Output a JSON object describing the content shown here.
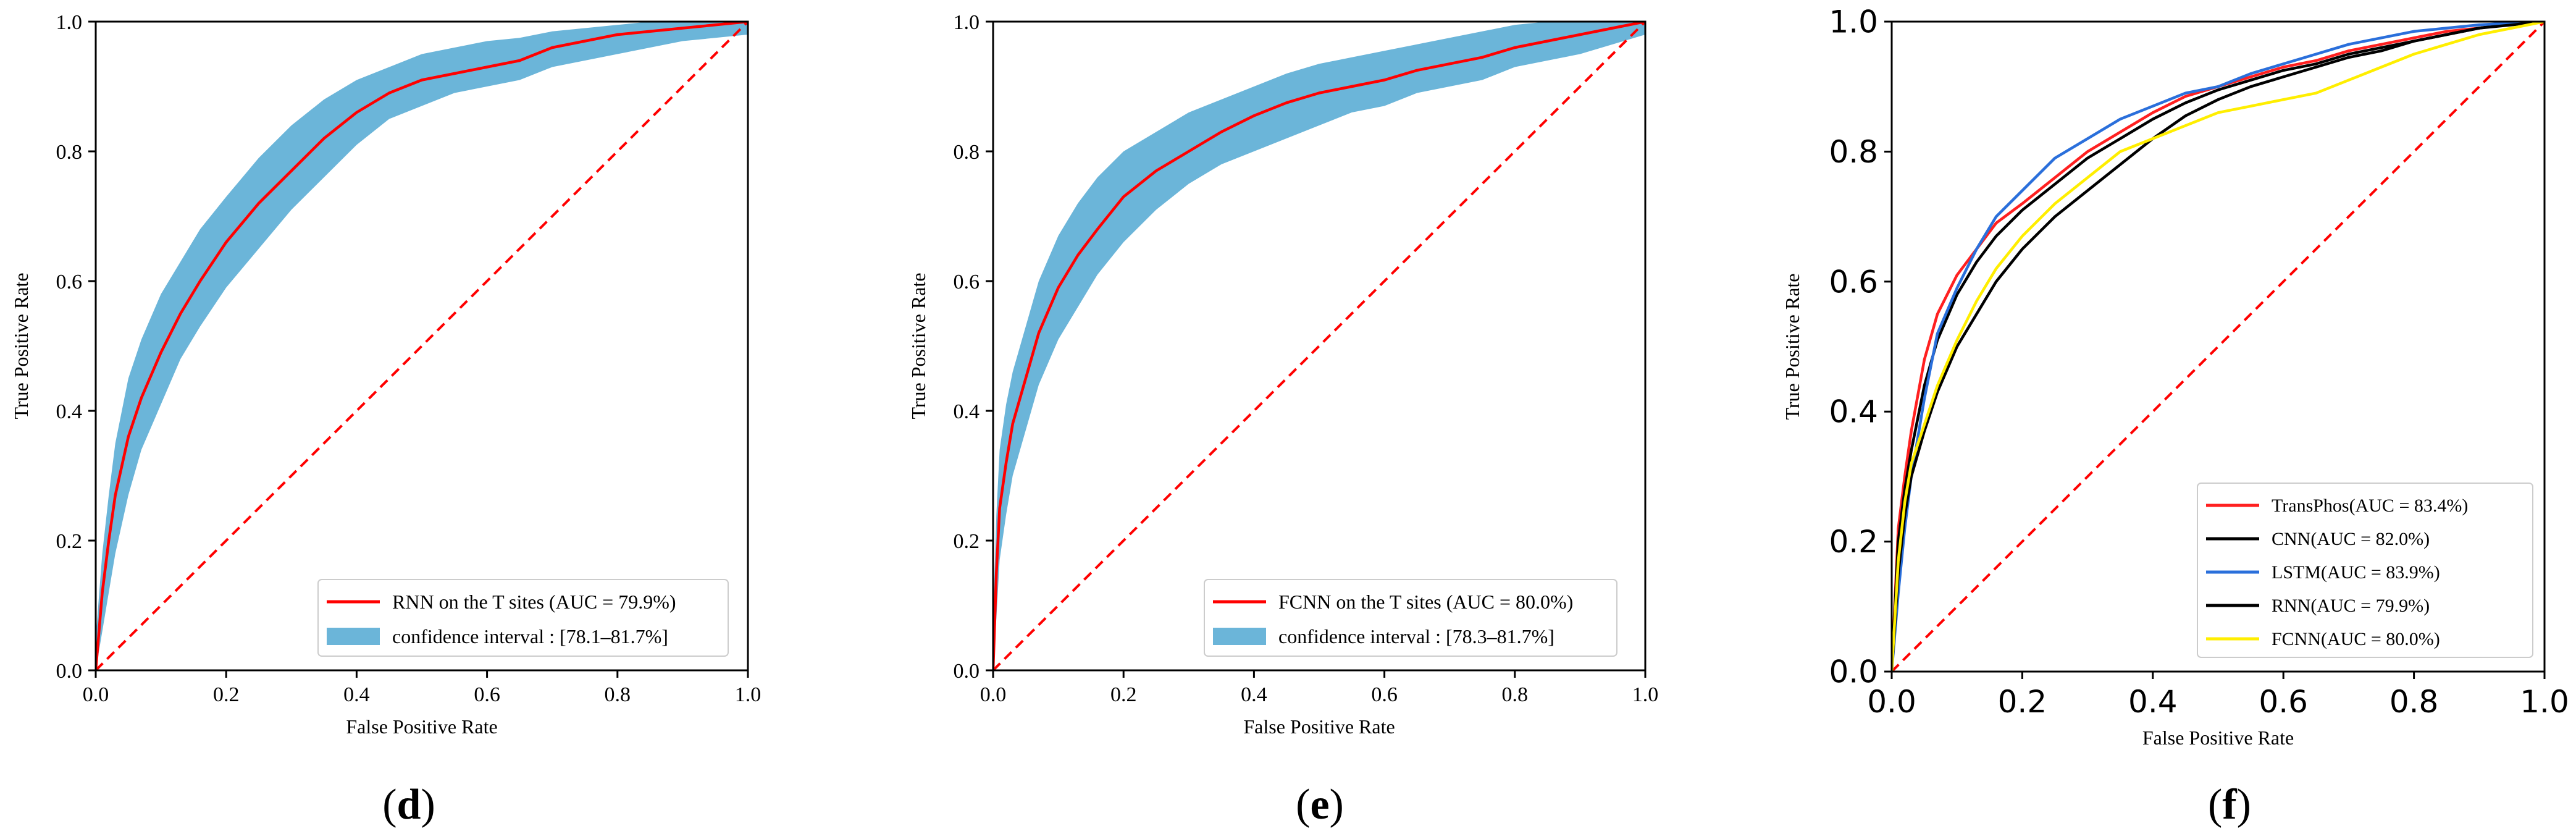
{
  "chart_data": [
    {
      "type": "line",
      "panel_label": "d",
      "xlabel": "False Positive Rate",
      "ylabel": "True Positive Rate",
      "xlim": [
        0.0,
        1.0
      ],
      "ylim": [
        0.0,
        1.0
      ],
      "xticks": [
        "0.0",
        "0.2",
        "0.4",
        "0.6",
        "0.8",
        "1.0"
      ],
      "yticks": [
        "0.0",
        "0.2",
        "0.4",
        "0.6",
        "0.8",
        "1.0"
      ],
      "legend_position": "lower-right",
      "series": [
        {
          "name": "RNN on the T sites (AUC = 79.9%)",
          "color": "#ff0000",
          "style": "solid",
          "x": [
            0,
            0.01,
            0.02,
            0.03,
            0.05,
            0.07,
            0.1,
            0.13,
            0.16,
            0.2,
            0.25,
            0.3,
            0.35,
            0.4,
            0.45,
            0.5,
            0.55,
            0.6,
            0.65,
            0.7,
            0.75,
            0.8,
            0.85,
            0.9,
            0.95,
            1.0
          ],
          "y": [
            0,
            0.12,
            0.2,
            0.27,
            0.36,
            0.42,
            0.49,
            0.55,
            0.6,
            0.66,
            0.72,
            0.77,
            0.82,
            0.86,
            0.89,
            0.91,
            0.92,
            0.93,
            0.94,
            0.96,
            0.97,
            0.98,
            0.985,
            0.99,
            0.995,
            1.0
          ]
        },
        {
          "name": "confidence interval : [78.1–81.7%]",
          "color": "#6bb5d9",
          "style": "band",
          "x": [
            0,
            0.01,
            0.02,
            0.03,
            0.05,
            0.07,
            0.1,
            0.13,
            0.16,
            0.2,
            0.25,
            0.3,
            0.35,
            0.4,
            0.45,
            0.5,
            0.55,
            0.6,
            0.65,
            0.7,
            0.75,
            0.8,
            0.85,
            0.9,
            0.95,
            1.0
          ],
          "lower": [
            0,
            0.06,
            0.12,
            0.18,
            0.27,
            0.34,
            0.41,
            0.48,
            0.53,
            0.59,
            0.65,
            0.71,
            0.76,
            0.81,
            0.85,
            0.87,
            0.89,
            0.9,
            0.91,
            0.93,
            0.94,
            0.95,
            0.96,
            0.97,
            0.975,
            0.98
          ],
          "upper": [
            0.05,
            0.18,
            0.27,
            0.35,
            0.45,
            0.51,
            0.58,
            0.63,
            0.68,
            0.73,
            0.79,
            0.84,
            0.88,
            0.91,
            0.93,
            0.95,
            0.96,
            0.97,
            0.975,
            0.985,
            0.99,
            0.995,
            1.0,
            1.0,
            1.0,
            1.0
          ]
        },
        {
          "name": "diagonal",
          "color": "#ff0000",
          "style": "dashed",
          "x": [
            0,
            1
          ],
          "y": [
            0,
            1
          ]
        }
      ]
    },
    {
      "type": "line",
      "panel_label": "e",
      "xlabel": "False Positive Rate",
      "ylabel": "True Positive Rate",
      "xlim": [
        0.0,
        1.0
      ],
      "ylim": [
        0.0,
        1.0
      ],
      "xticks": [
        "0.0",
        "0.2",
        "0.4",
        "0.6",
        "0.8",
        "1.0"
      ],
      "yticks": [
        "0.0",
        "0.2",
        "0.4",
        "0.6",
        "0.8",
        "1.0"
      ],
      "legend_position": "lower-right",
      "series": [
        {
          "name": "FCNN on the T sites (AUC = 80.0%)",
          "color": "#ff0000",
          "style": "solid",
          "x": [
            0,
            0.005,
            0.01,
            0.02,
            0.03,
            0.05,
            0.07,
            0.1,
            0.13,
            0.16,
            0.2,
            0.25,
            0.3,
            0.35,
            0.4,
            0.45,
            0.5,
            0.55,
            0.6,
            0.65,
            0.7,
            0.75,
            0.8,
            0.85,
            0.9,
            0.95,
            1.0
          ],
          "y": [
            0,
            0.15,
            0.25,
            0.32,
            0.38,
            0.45,
            0.52,
            0.59,
            0.64,
            0.68,
            0.73,
            0.77,
            0.8,
            0.83,
            0.855,
            0.875,
            0.89,
            0.9,
            0.91,
            0.925,
            0.935,
            0.945,
            0.96,
            0.97,
            0.98,
            0.99,
            1.0
          ]
        },
        {
          "name": "confidence interval : [78.3–81.7%]",
          "color": "#6bb5d9",
          "style": "band",
          "x": [
            0,
            0.005,
            0.01,
            0.02,
            0.03,
            0.05,
            0.07,
            0.1,
            0.13,
            0.16,
            0.2,
            0.25,
            0.3,
            0.35,
            0.4,
            0.45,
            0.5,
            0.55,
            0.6,
            0.65,
            0.7,
            0.75,
            0.8,
            0.85,
            0.9,
            0.95,
            1.0
          ],
          "lower": [
            0,
            0.08,
            0.17,
            0.24,
            0.3,
            0.37,
            0.44,
            0.51,
            0.56,
            0.61,
            0.66,
            0.71,
            0.75,
            0.78,
            0.8,
            0.82,
            0.84,
            0.86,
            0.87,
            0.89,
            0.9,
            0.91,
            0.93,
            0.94,
            0.95,
            0.965,
            0.98
          ],
          "upper": [
            0.08,
            0.24,
            0.34,
            0.41,
            0.46,
            0.53,
            0.6,
            0.67,
            0.72,
            0.76,
            0.8,
            0.83,
            0.86,
            0.88,
            0.9,
            0.92,
            0.935,
            0.945,
            0.955,
            0.965,
            0.975,
            0.985,
            0.995,
            1.0,
            1.0,
            1.0,
            1.0
          ]
        },
        {
          "name": "diagonal",
          "color": "#ff0000",
          "style": "dashed",
          "x": [
            0,
            1
          ],
          "y": [
            0,
            1
          ]
        }
      ]
    },
    {
      "type": "line",
      "panel_label": "f",
      "xlabel": "False Positive Rate",
      "ylabel": "True Positive Rate",
      "xlim": [
        0.0,
        1.0
      ],
      "ylim": [
        0.0,
        1.0
      ],
      "xticks": [
        "0.0",
        "0.2",
        "0.4",
        "0.6",
        "0.8",
        "1.0"
      ],
      "yticks": [
        "0.0",
        "0.2",
        "0.4",
        "0.6",
        "0.8",
        "1.0"
      ],
      "legend_position": "lower-right",
      "series": [
        {
          "name": "TransPhos(AUC = 83.4%)",
          "color": "#ff2020",
          "style": "solid",
          "x": [
            0,
            0.01,
            0.02,
            0.03,
            0.05,
            0.07,
            0.1,
            0.13,
            0.16,
            0.2,
            0.25,
            0.3,
            0.35,
            0.4,
            0.45,
            0.5,
            0.55,
            0.6,
            0.65,
            0.7,
            0.75,
            0.8,
            0.85,
            0.9,
            0.95,
            1.0
          ],
          "y": [
            0,
            0.22,
            0.3,
            0.37,
            0.48,
            0.55,
            0.61,
            0.65,
            0.69,
            0.72,
            0.76,
            0.8,
            0.83,
            0.86,
            0.885,
            0.9,
            0.915,
            0.93,
            0.94,
            0.955,
            0.965,
            0.975,
            0.985,
            0.99,
            0.997,
            1.0
          ]
        },
        {
          "name": "CNN(AUC = 82.0%)",
          "color": "#000000",
          "style": "solid",
          "x": [
            0,
            0.01,
            0.02,
            0.03,
            0.05,
            0.07,
            0.1,
            0.13,
            0.16,
            0.2,
            0.25,
            0.3,
            0.35,
            0.4,
            0.45,
            0.5,
            0.55,
            0.6,
            0.65,
            0.7,
            0.75,
            0.8,
            0.85,
            0.9,
            0.95,
            1.0
          ],
          "y": [
            0,
            0.2,
            0.28,
            0.34,
            0.44,
            0.51,
            0.58,
            0.63,
            0.67,
            0.71,
            0.75,
            0.79,
            0.82,
            0.85,
            0.875,
            0.895,
            0.91,
            0.925,
            0.935,
            0.95,
            0.96,
            0.97,
            0.98,
            0.99,
            0.997,
            1.0
          ]
        },
        {
          "name": "LSTM(AUC = 83.9%)",
          "color": "#2a6fdb",
          "style": "solid",
          "x": [
            0,
            0.01,
            0.02,
            0.03,
            0.05,
            0.07,
            0.1,
            0.13,
            0.16,
            0.2,
            0.25,
            0.3,
            0.35,
            0.4,
            0.45,
            0.5,
            0.55,
            0.6,
            0.65,
            0.7,
            0.75,
            0.8,
            0.85,
            0.9,
            0.95,
            1.0
          ],
          "y": [
            0,
            0.12,
            0.22,
            0.3,
            0.42,
            0.52,
            0.59,
            0.65,
            0.7,
            0.74,
            0.79,
            0.82,
            0.85,
            0.87,
            0.89,
            0.9,
            0.92,
            0.935,
            0.95,
            0.965,
            0.975,
            0.985,
            0.99,
            0.995,
            0.998,
            1.0
          ]
        },
        {
          "name": "RNN(AUC = 79.9%)",
          "color": "#000000",
          "style": "solid",
          "x": [
            0,
            0.01,
            0.02,
            0.03,
            0.05,
            0.07,
            0.1,
            0.13,
            0.16,
            0.2,
            0.25,
            0.3,
            0.35,
            0.4,
            0.45,
            0.5,
            0.55,
            0.6,
            0.65,
            0.7,
            0.75,
            0.8,
            0.85,
            0.9,
            0.95,
            1.0
          ],
          "y": [
            0,
            0.15,
            0.24,
            0.3,
            0.37,
            0.43,
            0.5,
            0.55,
            0.6,
            0.65,
            0.7,
            0.74,
            0.78,
            0.82,
            0.855,
            0.88,
            0.9,
            0.915,
            0.93,
            0.945,
            0.955,
            0.97,
            0.98,
            0.99,
            0.995,
            1.0
          ]
        },
        {
          "name": "FCNN(AUC = 80.0%)",
          "color": "#ffee00",
          "style": "solid",
          "x": [
            0,
            0.01,
            0.02,
            0.03,
            0.05,
            0.07,
            0.1,
            0.13,
            0.16,
            0.2,
            0.25,
            0.3,
            0.35,
            0.4,
            0.45,
            0.5,
            0.55,
            0.6,
            0.65,
            0.7,
            0.75,
            0.8,
            0.85,
            0.9,
            0.95,
            1.0
          ],
          "y": [
            0,
            0.17,
            0.26,
            0.32,
            0.38,
            0.44,
            0.51,
            0.57,
            0.62,
            0.67,
            0.72,
            0.76,
            0.8,
            0.82,
            0.84,
            0.86,
            0.87,
            0.88,
            0.89,
            0.91,
            0.93,
            0.95,
            0.965,
            0.98,
            0.99,
            1.0
          ]
        },
        {
          "name": "diagonal",
          "color": "#ff0000",
          "style": "dashed",
          "x": [
            0,
            1
          ],
          "y": [
            0,
            1
          ]
        }
      ]
    }
  ]
}
